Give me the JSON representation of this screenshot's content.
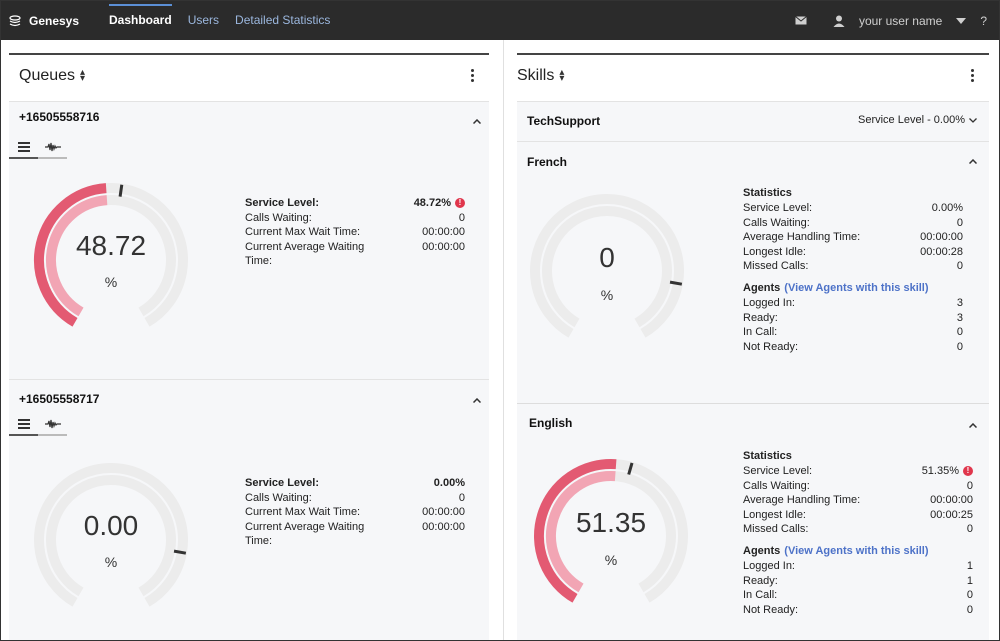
{
  "app": {
    "brand": "Genesys",
    "nav": [
      "Dashboard",
      "Users",
      "Detailed Statistics"
    ],
    "username": "your user name",
    "help": "?"
  },
  "queues": {
    "title": "Queues",
    "items": [
      {
        "name": "+16505558716",
        "gauge_value": "48.72",
        "gauge_unit": "%",
        "level_fraction": 0.4872,
        "stats": [
          {
            "label": "Service Level:",
            "value": "48.72%",
            "alert": true
          },
          {
            "label": "Calls Waiting:",
            "value": "0"
          },
          {
            "label": "Current Max Wait Time:",
            "value": "00:00:00"
          },
          {
            "label": "Current Average Waiting",
            "value": "00:00:00"
          },
          {
            "label": "Time:",
            "value": ""
          }
        ]
      },
      {
        "name": "+16505558717",
        "gauge_value": "0.00",
        "gauge_unit": "%",
        "level_fraction": 0.0,
        "stats": [
          {
            "label": "Service Level:",
            "value": "0.00%"
          },
          {
            "label": "Calls Waiting:",
            "value": "0"
          },
          {
            "label": "Current Max Wait Time:",
            "value": "00:00:00"
          },
          {
            "label": "Current Average Waiting",
            "value": "00:00:00"
          },
          {
            "label": "Time:",
            "value": ""
          }
        ]
      }
    ]
  },
  "skills": {
    "title": "Skills",
    "collapsed": {
      "name": "TechSupport",
      "service_level": "Service Level - 0.00%"
    },
    "items": [
      {
        "name": "French",
        "gauge_value": "0",
        "gauge_unit": "%",
        "level_fraction": 0.0,
        "statistics_heading": "Statistics",
        "stats": [
          {
            "label": "Service Level:",
            "value": "0.00%"
          },
          {
            "label": "Calls Waiting:",
            "value": "0"
          },
          {
            "label": "Average Handling Time:",
            "value": "00:00:00"
          },
          {
            "label": "Longest Idle:",
            "value": "00:00:28"
          },
          {
            "label": "Missed Calls:",
            "value": "0"
          }
        ],
        "agents_heading": "Agents",
        "agents_link": "(View Agents with this skill)",
        "agents": [
          {
            "label": "Logged In:",
            "value": "3"
          },
          {
            "label": "Ready:",
            "value": "3"
          },
          {
            "label": "In Call:",
            "value": "0"
          },
          {
            "label": "Not Ready:",
            "value": "0"
          }
        ]
      },
      {
        "name": "English",
        "gauge_value": "51.35",
        "gauge_unit": "%",
        "level_fraction": 0.5135,
        "statistics_heading": "Statistics",
        "stats": [
          {
            "label": "Service Level:",
            "value": "51.35%",
            "alert": true
          },
          {
            "label": "Calls Waiting:",
            "value": "0"
          },
          {
            "label": "Average Handling Time:",
            "value": "00:00:00"
          },
          {
            "label": "Longest Idle:",
            "value": "00:00:25"
          },
          {
            "label": "Missed Calls:",
            "value": "0"
          }
        ],
        "agents_heading": "Agents",
        "agents_link": "(View Agents with this skill)",
        "agents": [
          {
            "label": "Logged In:",
            "value": "1"
          },
          {
            "label": "Ready:",
            "value": "1"
          },
          {
            "label": "In Call:",
            "value": "0"
          },
          {
            "label": "Not Ready:",
            "value": "0"
          }
        ]
      }
    ]
  },
  "colors": {
    "gauge_red": "#e35a72",
    "gauge_pink": "#f2a5b4",
    "gauge_track": "#ececec",
    "link": "#4d72c8",
    "alert": "#e0364c"
  }
}
